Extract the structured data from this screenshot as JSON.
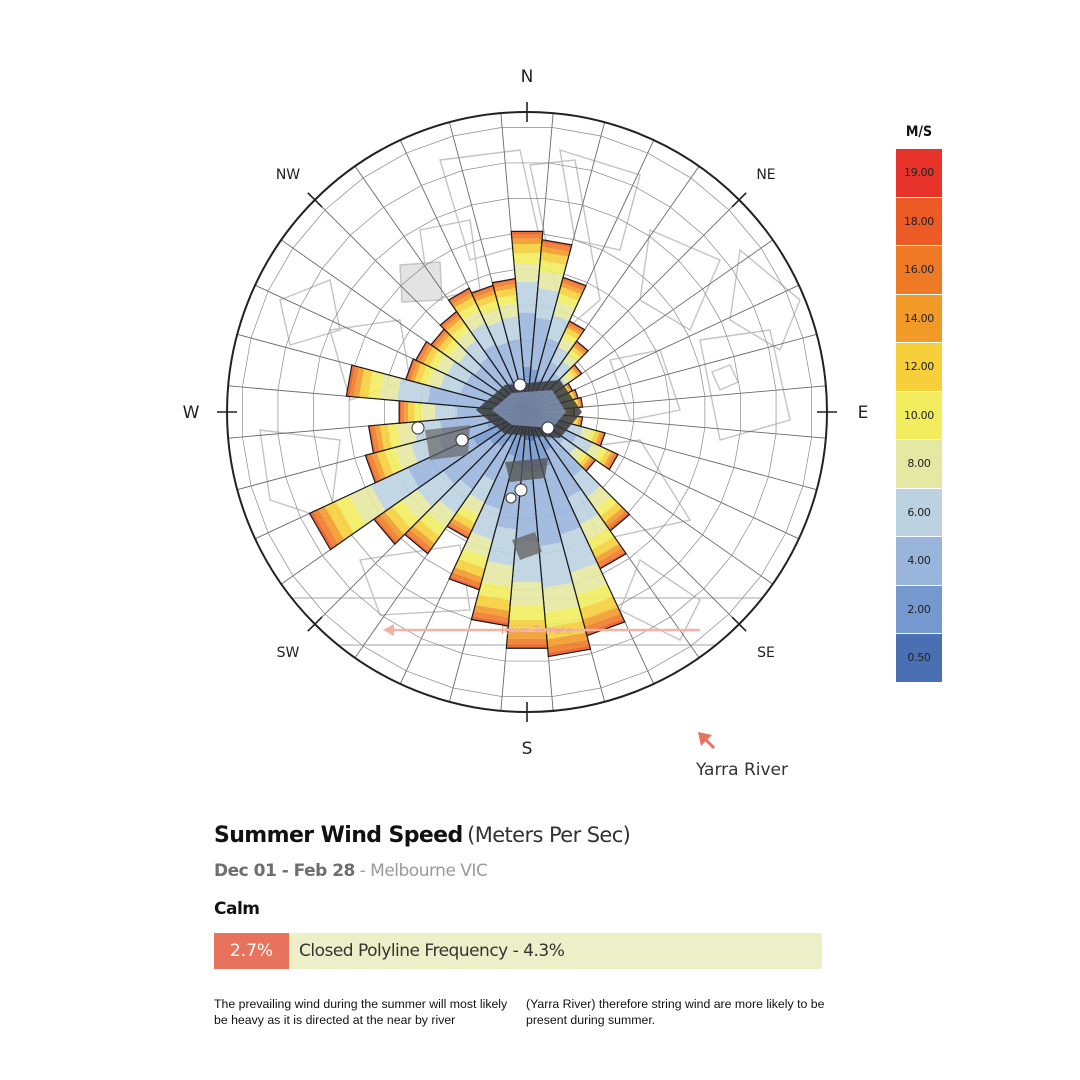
{
  "chart_data": {
    "type": "wind-rose",
    "title": "Summer Wind Speed",
    "units_label": "(Meters Per Sec)",
    "legend_title": "M/S",
    "compass": [
      "N",
      "NE",
      "E",
      "SE",
      "S",
      "SW",
      "W",
      "NW"
    ],
    "speed_bins": [
      "19.00",
      "18.00",
      "16.00",
      "14.00",
      "12.00",
      "10.00",
      "8.00",
      "6.00",
      "4.00",
      "2.00",
      "0.50"
    ],
    "bin_colors": [
      "#e8332a",
      "#ec5a26",
      "#ef7a26",
      "#f29a28",
      "#f6cf3a",
      "#f1ed5e",
      "#e4e8a2",
      "#bcd2e0",
      "#9ab5dc",
      "#7598cf",
      "#4a6fb3"
    ],
    "directions_deg": [
      0,
      10,
      20,
      30,
      40,
      50,
      60,
      70,
      80,
      90,
      100,
      110,
      120,
      130,
      140,
      150,
      160,
      170,
      180,
      190,
      200,
      210,
      220,
      230,
      240,
      250,
      260,
      270,
      280,
      290,
      300,
      310,
      320,
      330,
      340,
      350
    ],
    "relative_frequency": [
      0.65,
      0.62,
      0.5,
      0.36,
      0.31,
      0.24,
      0.18,
      0.19,
      0.2,
      0.17,
      0.2,
      0.29,
      0.36,
      0.3,
      0.52,
      0.62,
      0.83,
      0.88,
      0.85,
      0.77,
      0.66,
      0.5,
      0.62,
      0.67,
      0.86,
      0.6,
      0.57,
      0.46,
      0.65,
      0.45,
      0.44,
      0.42,
      0.44,
      0.49,
      0.47,
      0.48
    ],
    "annotation": "River Terrace"
  },
  "river_label": "Yarra River",
  "header": {
    "title": "Summer Wind Speed",
    "units": "(Meters Per Sec)",
    "date_range": "Dec 01 - Feb 28",
    "location": "- Melbourne VIC"
  },
  "calm": {
    "label": "Calm",
    "value": "2.7%",
    "frequency_text": "Closed Polyline Frequency - 4.3%"
  },
  "description": {
    "left": "The prevailing wind during the summer will most likely be heavy as it is directed at the near by river",
    "right": "(Yarra River) therefore string wind are more likely to be present during summer."
  },
  "colors": {
    "calm_box": "#e8735d",
    "frequency_bar": "#edefc8",
    "arrow": "#e8735d"
  }
}
